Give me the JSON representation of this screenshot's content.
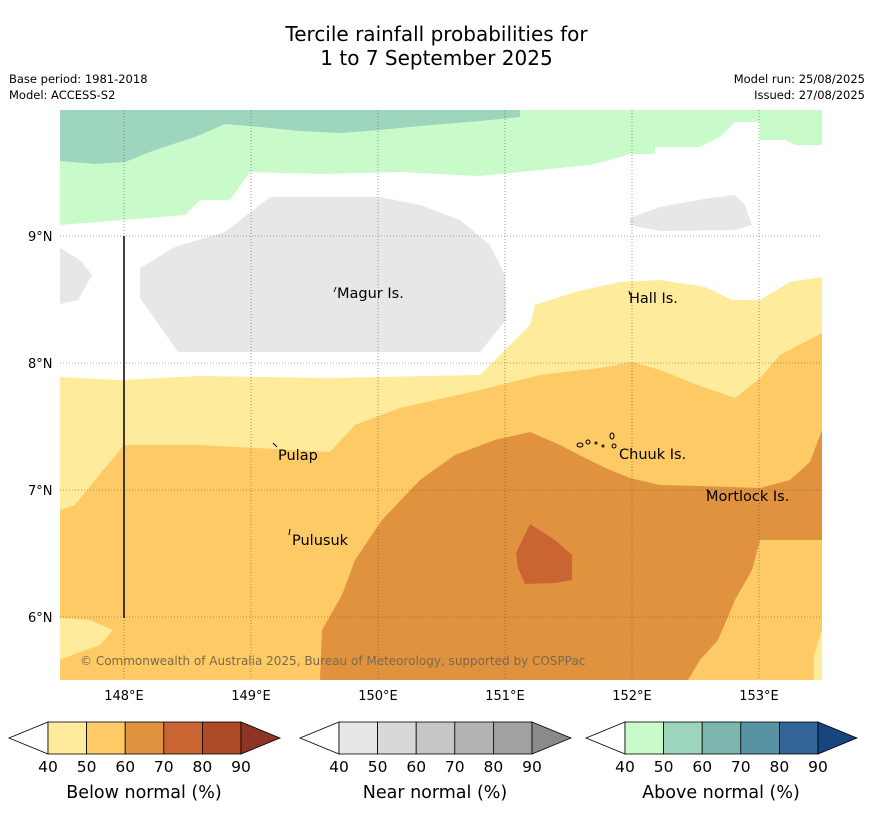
{
  "title": {
    "line1": "Tercile rainfall probabilities for",
    "line2": "1 to 7 September 2025"
  },
  "meta_left": {
    "base_period": "Base period: 1981-2018",
    "model": "Model: ACCESS-S2"
  },
  "meta_right": {
    "model_run": "Model run: 25/08/2025",
    "issued": "Issued: 27/08/2025"
  },
  "lat_labels": [
    "9°N",
    "8°N",
    "7°N",
    "6°N"
  ],
  "lon_labels": [
    "148°E",
    "149°E",
    "150°E",
    "151°E",
    "152°E",
    "153°E"
  ],
  "places": [
    "Magur Is.",
    "Hall Is.",
    "Pulap",
    "Chuuk Is.",
    "Mortlock Is.",
    "Pulusuk"
  ],
  "copyright": "© Commonwealth of Australia 2025, Bureau of Meteorology, supported by COSPPac",
  "colorbars": [
    {
      "title": "Below normal (%)",
      "labels": [
        "40",
        "50",
        "60",
        "70",
        "80",
        "90"
      ],
      "colors": [
        "#ffffff",
        "#feeb9b",
        "#fdca65",
        "#e0923f",
        "#cb6433",
        "#ad4a28",
        "#8e3424"
      ]
    },
    {
      "title": "Near normal (%)",
      "labels": [
        "40",
        "50",
        "60",
        "70",
        "80",
        "90"
      ],
      "colors": [
        "#ffffff",
        "#e7e7e7",
        "#d8d8d8",
        "#c6c6c6",
        "#b4b4b4",
        "#a1a1a1",
        "#8a8a8a"
      ]
    },
    {
      "title": "Above normal (%)",
      "labels": [
        "40",
        "50",
        "60",
        "70",
        "80",
        "90"
      ],
      "colors": [
        "#ffffff",
        "#c8fbc9",
        "#9ed5bd",
        "#7db6ae",
        "#5893a3",
        "#316497",
        "#18447f"
      ]
    }
  ],
  "map_colors": {
    "below_50": "#feeb9b",
    "below_60": "#fdca65",
    "below_70": "#e0923f",
    "below_80": "#cb6433",
    "near_50": "#e7e7e7",
    "above_50": "#c8fbc9",
    "above_60": "#9ed5bd",
    "none": "#ffffff"
  }
}
